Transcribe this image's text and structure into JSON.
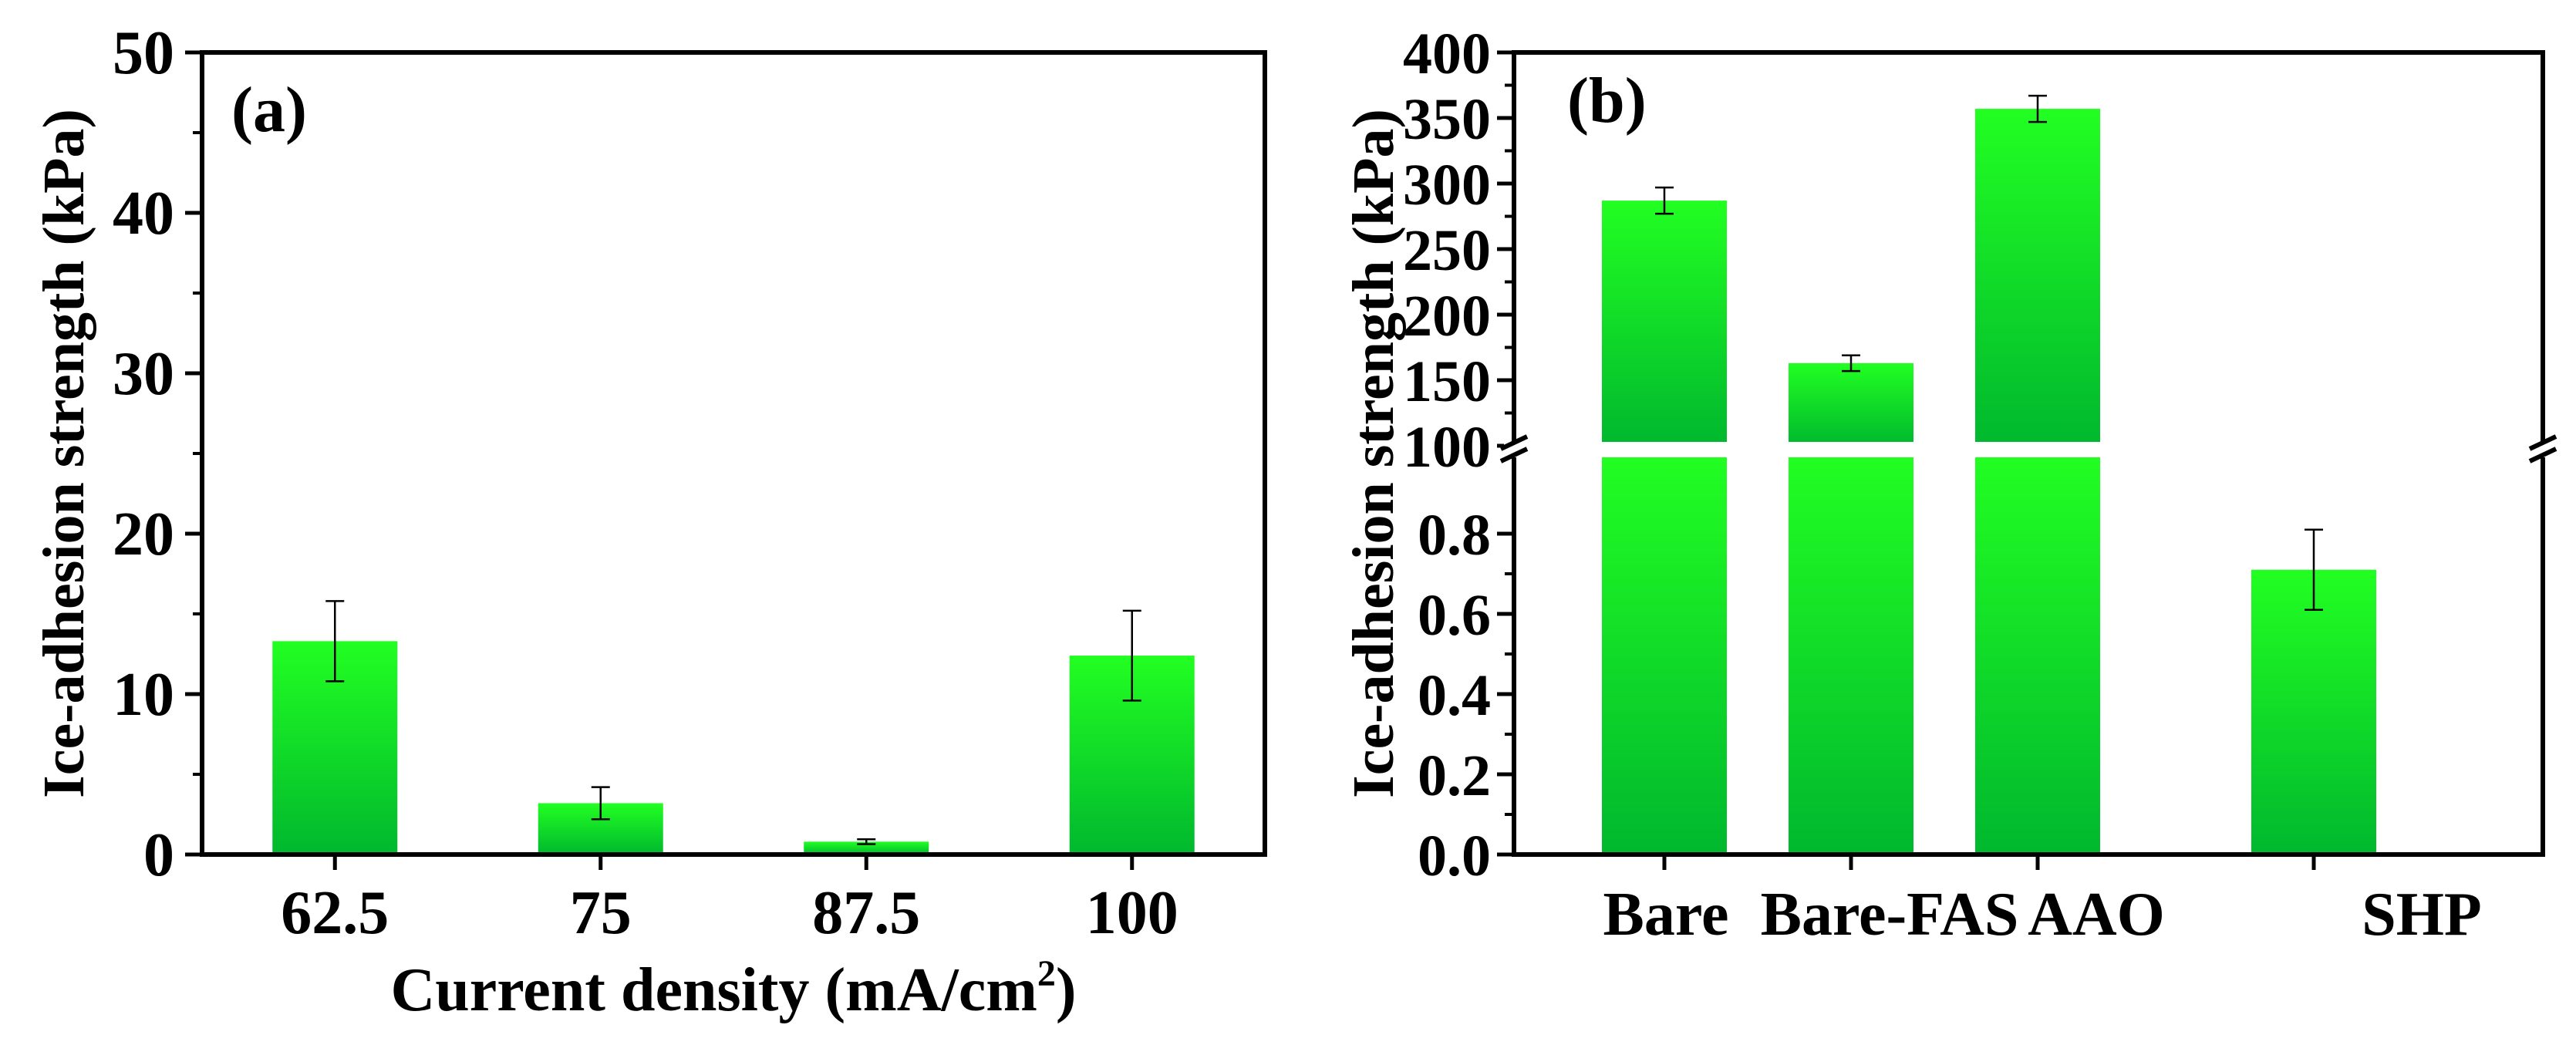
{
  "figure": {
    "bar_gradient": {
      "top": "#22ff22",
      "bottom": "#00b82e"
    },
    "text_color": "#000000"
  },
  "chart_data": [
    {
      "panel": "a",
      "type": "bar",
      "panel_label": "(a)",
      "xlabel": "Current density (mA/cm",
      "xlabel_superscript": "2",
      "xlabel_close": ")",
      "ylabel": "Ice-adhesion strength (kPa)",
      "categories": [
        "62.5",
        "75",
        "87.5",
        "100"
      ],
      "values": [
        13.3,
        3.2,
        0.8,
        12.4
      ],
      "errors": [
        2.5,
        1.0,
        0.15,
        2.8
      ],
      "ylim": [
        0,
        50
      ],
      "yticks": [
        0,
        10,
        20,
        30,
        40,
        50
      ],
      "grid": false
    },
    {
      "panel": "b",
      "type": "bar",
      "panel_label": "(b)",
      "xlabel": "",
      "ylabel": "Ice-adhesion strength (kPa)",
      "categories": [
        "Bare",
        "Bare-FAS",
        "AAO",
        "SHP"
      ],
      "values": [
        287,
        163,
        357,
        0.71
      ],
      "errors": [
        10,
        6,
        10,
        0.1
      ],
      "broken_axis": true,
      "lower_segment": {
        "ylim": [
          0,
          1.0
        ],
        "yticks": [
          "0.0",
          "0.2",
          "0.4",
          "0.6",
          "0.8"
        ]
      },
      "upper_segment": {
        "ylim": [
          100,
          400
        ],
        "yticks": [
          "100",
          "150",
          "200",
          "250",
          "300",
          "350",
          "400"
        ]
      },
      "grid": false
    }
  ]
}
